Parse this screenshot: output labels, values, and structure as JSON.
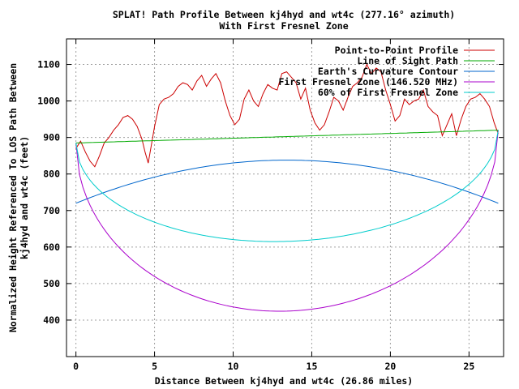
{
  "chart_data": {
    "type": "line",
    "title": "SPLAT! Path Profile Between kj4hyd and wt4c (277.16° azimuth)",
    "subtitle": "With First Fresnel Zone",
    "xlabel": "Distance Between kj4hyd and wt4c (26.86 miles)",
    "ylabel_line1": "Normalized Height Referenced To LOS Path Between",
    "ylabel_line2": "kj4hyd and wt4c (feet)",
    "xlim": [
      -0.6,
      27.2
    ],
    "ylim": [
      300,
      1170
    ],
    "xticks": [
      0,
      5,
      10,
      15,
      20,
      25
    ],
    "xtick_labels": [
      "0",
      "5",
      "10",
      "15",
      "20",
      "25"
    ],
    "yticks": [
      400,
      500,
      600,
      700,
      800,
      900,
      1000,
      1100
    ],
    "ytick_labels": [
      "400",
      "500",
      "600",
      "700",
      "800",
      "900",
      "1000",
      "1100"
    ],
    "grid": true,
    "legend_position": "top-right",
    "series": [
      {
        "name": "Point-to-Point Profile",
        "color": "#cc0000",
        "x": [
          0,
          0.3,
          0.6,
          0.9,
          1.2,
          1.5,
          1.8,
          2.1,
          2.4,
          2.7,
          3.0,
          3.3,
          3.6,
          3.9,
          4.2,
          4.4,
          4.6,
          4.8,
          5.0,
          5.3,
          5.6,
          5.9,
          6.2,
          6.5,
          6.8,
          7.1,
          7.4,
          7.7,
          8.0,
          8.3,
          8.6,
          8.9,
          9.2,
          9.5,
          9.8,
          10.1,
          10.4,
          10.7,
          11.0,
          11.3,
          11.6,
          11.9,
          12.2,
          12.5,
          12.8,
          13.1,
          13.4,
          13.7,
          14.0,
          14.3,
          14.6,
          14.9,
          15.2,
          15.5,
          15.8,
          16.1,
          16.4,
          16.7,
          17.0,
          17.3,
          17.6,
          17.9,
          18.2,
          18.5,
          18.8,
          19.1,
          19.4,
          19.7,
          20.0,
          20.3,
          20.6,
          20.9,
          21.2,
          21.5,
          21.8,
          22.1,
          22.4,
          22.7,
          23.0,
          23.3,
          23.6,
          23.9,
          24.2,
          24.5,
          24.8,
          25.1,
          25.4,
          25.7,
          26.0,
          26.3,
          26.6,
          26.86
        ],
        "y": [
          870,
          890,
          860,
          835,
          820,
          850,
          885,
          900,
          920,
          935,
          955,
          960,
          950,
          930,
          895,
          860,
          830,
          880,
          930,
          990,
          1005,
          1010,
          1020,
          1040,
          1050,
          1045,
          1030,
          1055,
          1070,
          1040,
          1060,
          1075,
          1050,
          1000,
          960,
          935,
          950,
          1005,
          1030,
          1000,
          985,
          1020,
          1045,
          1035,
          1030,
          1075,
          1080,
          1065,
          1050,
          1005,
          1035,
          975,
          940,
          920,
          935,
          970,
          1010,
          1000,
          975,
          1010,
          1040,
          1050,
          1065,
          1100,
          1075,
          1090,
          1080,
          1030,
          990,
          945,
          960,
          1005,
          990,
          1000,
          1005,
          1030,
          985,
          970,
          960,
          905,
          935,
          965,
          905,
          950,
          985,
          1005,
          1010,
          1020,
          1005,
          985,
          940,
          910
        ]
      },
      {
        "name": "Line of Sight Path",
        "color": "#00aa00",
        "shape": "los",
        "y_start": 885,
        "y_end": 920
      },
      {
        "name": "Earth's Curvature Contour",
        "color": "#0066cc",
        "shape": "curve",
        "y_start": 720,
        "y_end": 720,
        "y_mid": 838
      },
      {
        "name": "First Fresnel Zone (146.520 MHz)",
        "color": "#aa00cc",
        "shape": "fresnel",
        "y_start": 885,
        "y_end": 920,
        "depth": 478
      },
      {
        "name": "60% of First Fresnel Zone",
        "color": "#00cccc",
        "shape": "fresnel",
        "y_start": 885,
        "y_end": 920,
        "depth": 287
      }
    ]
  }
}
